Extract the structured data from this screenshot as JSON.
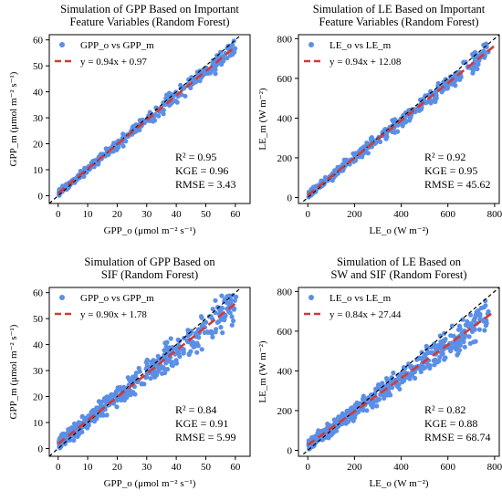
{
  "charts": [
    {
      "type": "scatter",
      "title_lines": [
        "Simulation of GPP Based on Important",
        "Feature Variables (Random Forest)"
      ],
      "xlabel": "GPP_o (μmol m⁻² s⁻¹)",
      "ylabel": "GPP_m (μmol m⁻² s⁻¹)",
      "xlim": [
        -3,
        65
      ],
      "ylim": [
        -3,
        62
      ],
      "xticks": [
        0,
        10,
        20,
        30,
        40,
        50,
        60
      ],
      "yticks": [
        0,
        10,
        20,
        30,
        40,
        50,
        60
      ],
      "legend": {
        "scatter": "GPP_o vs GPP_m",
        "fit": "y = 0.94x + 0.97"
      },
      "fit": {
        "slope": 0.94,
        "intercept": 0.97
      },
      "stats": [
        "R² = 0.95",
        "KGE = 0.96",
        "RMSE = 3.43"
      ],
      "sample": {
        "n": 380,
        "xmax": 60,
        "noise": 2.4,
        "seed": 11
      },
      "grid": false
    },
    {
      "type": "scatter",
      "title_lines": [
        "Simulation of LE Based on Important",
        "Feature Variables (Random Forest)"
      ],
      "xlabel": "LE_o (W m⁻²)",
      "ylabel": "LE_m (W m⁻²)",
      "xlim": [
        -40,
        820
      ],
      "ylim": [
        -30,
        820
      ],
      "xticks": [
        0,
        200,
        400,
        600,
        800
      ],
      "yticks": [
        0,
        200,
        400,
        600,
        800
      ],
      "legend": {
        "scatter": "LE_o vs LE_m",
        "fit": "y = 0.94x + 12.08"
      },
      "fit": {
        "slope": 0.94,
        "intercept": 12.08
      },
      "stats": [
        "R² = 0.92",
        "KGE = 0.95",
        "RMSE = 45.62"
      ],
      "sample": {
        "n": 380,
        "xmax": 770,
        "noise": 36,
        "seed": 23
      },
      "grid": false
    },
    {
      "type": "scatter",
      "title_lines": [
        "Simulation of GPP Based on",
        "SIF (Random Forest)"
      ],
      "xlabel": "GPP_o (μmol m⁻² s⁻¹)",
      "ylabel": "GPP_m (μmol m⁻² s⁻¹)",
      "xlim": [
        -3,
        65
      ],
      "ylim": [
        -3,
        62
      ],
      "xticks": [
        0,
        10,
        20,
        30,
        40,
        50,
        60
      ],
      "yticks": [
        0,
        10,
        20,
        30,
        40,
        50,
        60
      ],
      "legend": {
        "scatter": "GPP_o vs GPP_m",
        "fit": "y = 0.90x + 1.78"
      },
      "fit": {
        "slope": 0.9,
        "intercept": 1.78
      },
      "stats": [
        "R² = 0.84",
        "KGE = 0.91",
        "RMSE = 5.99"
      ],
      "sample": {
        "n": 480,
        "xmax": 60,
        "noise": 5.2,
        "seed": 37
      },
      "grid": false
    },
    {
      "type": "scatter",
      "title_lines": [
        "Simulation of LE Based on",
        "SW and SIF (Random Forest)"
      ],
      "xlabel": "LE_o (W m⁻²)",
      "ylabel": "LE_m (W m⁻²)",
      "xlim": [
        -40,
        820
      ],
      "ylim": [
        -30,
        820
      ],
      "xticks": [
        0,
        200,
        400,
        600,
        800
      ],
      "yticks": [
        0,
        200,
        400,
        600,
        800
      ],
      "legend": {
        "scatter": "LE_o vs LE_m",
        "fit": "y = 0.84x + 27.44"
      },
      "fit": {
        "slope": 0.84,
        "intercept": 27.44
      },
      "stats": [
        "R² = 0.82",
        "KGE = 0.88",
        "RMSE = 68.74"
      ],
      "sample": {
        "n": 480,
        "xmax": 770,
        "noise": 58,
        "seed": 53
      },
      "grid": false
    }
  ],
  "colors": {
    "points": "#5b8fe6",
    "fit": "#d23a3a",
    "identity": "#000000"
  }
}
